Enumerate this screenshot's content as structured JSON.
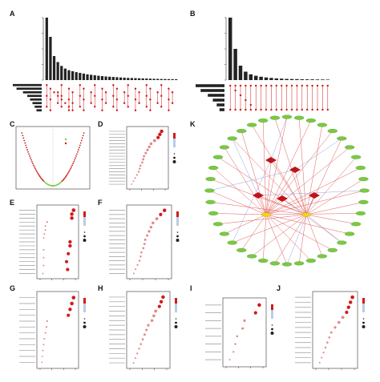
{
  "panels": [
    {
      "id": "A",
      "label": "A"
    },
    {
      "id": "B",
      "label": "B"
    },
    {
      "id": "C",
      "label": "C"
    },
    {
      "id": "D",
      "label": "D"
    },
    {
      "id": "E",
      "label": "E"
    },
    {
      "id": "F",
      "label": "F"
    },
    {
      "id": "G",
      "label": "G"
    },
    {
      "id": "H",
      "label": "H"
    },
    {
      "id": "I",
      "label": "I"
    },
    {
      "id": "J",
      "label": "J"
    },
    {
      "id": "K",
      "label": "K"
    }
  ],
  "upset_A": {
    "intersection_sizes": [
      520,
      360,
      200,
      150,
      118,
      96,
      82,
      74,
      66,
      60,
      54,
      48,
      44,
      40,
      36,
      33,
      30,
      28,
      26,
      24,
      22,
      20,
      18,
      17,
      16,
      15,
      14,
      13,
      12,
      11,
      10,
      9,
      9,
      8,
      8,
      7
    ],
    "set_sizes": [
      940,
      820,
      610,
      470,
      380,
      300,
      230,
      170
    ],
    "colors": {
      "bar": "#222222",
      "dot": "#d11b1b"
    }
  },
  "upset_B": {
    "intersection_sizes": [
      520,
      260,
      120,
      70,
      48,
      36,
      28,
      22,
      18,
      14,
      12,
      10,
      9,
      8,
      7,
      6,
      6,
      5,
      5,
      4
    ],
    "set_sizes": [
      520,
      430,
      300,
      210,
      140,
      90
    ],
    "colors": {
      "bar": "#222222",
      "dot": "#d11b1b"
    }
  },
  "chart_data": [
    {
      "type": "scatter",
      "panel": "C",
      "shape": "volcano",
      "colors": {
        "significant": "#d11b1b",
        "not_significant": "#7ac943"
      }
    },
    {
      "type": "scatter",
      "panel": "D",
      "shape": "dot-plot",
      "points": [
        [
          0.9,
          0
        ],
        [
          0.85,
          1
        ],
        [
          0.8,
          2
        ],
        [
          0.7,
          3
        ],
        [
          0.6,
          4
        ],
        [
          0.55,
          5
        ],
        [
          0.5,
          6
        ],
        [
          0.45,
          7
        ],
        [
          0.4,
          8
        ],
        [
          0.38,
          9
        ],
        [
          0.35,
          10
        ],
        [
          0.3,
          11
        ],
        [
          0.28,
          12
        ],
        [
          0.25,
          13
        ],
        [
          0.2,
          14
        ],
        [
          0.15,
          15
        ],
        [
          0.1,
          16
        ],
        [
          0.05,
          17
        ]
      ]
    },
    {
      "type": "scatter",
      "panel": "E",
      "shape": "dot-plot",
      "points": [
        [
          0.95,
          0
        ],
        [
          0.9,
          1
        ],
        [
          0.9,
          2
        ],
        [
          0.2,
          3
        ],
        [
          0.15,
          4
        ],
        [
          0.15,
          5
        ],
        [
          0.12,
          6
        ],
        [
          0.1,
          7
        ],
        [
          0.85,
          8
        ],
        [
          0.85,
          9
        ],
        [
          0.1,
          10
        ],
        [
          0.8,
          11
        ],
        [
          0.1,
          12
        ],
        [
          0.75,
          13
        ],
        [
          0.1,
          14
        ],
        [
          0.78,
          15
        ],
        [
          0.08,
          16
        ]
      ]
    },
    {
      "type": "scatter",
      "panel": "F",
      "shape": "dot-plot",
      "points": [
        [
          0.9,
          0
        ],
        [
          0.8,
          1
        ],
        [
          0.7,
          2
        ],
        [
          0.6,
          3
        ],
        [
          0.55,
          4
        ],
        [
          0.5,
          5
        ],
        [
          0.45,
          6
        ],
        [
          0.4,
          7
        ],
        [
          0.38,
          8
        ],
        [
          0.35,
          9
        ],
        [
          0.3,
          10
        ],
        [
          0.28,
          11
        ],
        [
          0.25,
          12
        ],
        [
          0.2,
          13
        ],
        [
          0.15,
          14
        ],
        [
          0.1,
          15
        ]
      ]
    },
    {
      "type": "scatter",
      "panel": "G",
      "shape": "dot-plot",
      "points": [
        [
          0.95,
          0
        ],
        [
          0.9,
          1
        ],
        [
          0.85,
          2
        ],
        [
          0.8,
          3
        ],
        [
          0.2,
          4
        ],
        [
          0.18,
          5
        ],
        [
          0.15,
          6
        ],
        [
          0.12,
          7
        ],
        [
          0.1,
          8
        ],
        [
          0.08,
          9
        ],
        [
          0.06,
          10
        ],
        [
          0.05,
          11
        ]
      ]
    },
    {
      "type": "scatter",
      "panel": "H",
      "shape": "dot-plot",
      "points": [
        [
          0.9,
          0
        ],
        [
          0.85,
          1
        ],
        [
          0.8,
          2
        ],
        [
          0.7,
          3
        ],
        [
          0.65,
          4
        ],
        [
          0.6,
          5
        ],
        [
          0.5,
          6
        ],
        [
          0.45,
          7
        ],
        [
          0.4,
          8
        ],
        [
          0.35,
          9
        ],
        [
          0.3,
          10
        ],
        [
          0.25,
          11
        ],
        [
          0.2,
          12
        ],
        [
          0.15,
          13
        ],
        [
          0.1,
          14
        ]
      ]
    },
    {
      "type": "scatter",
      "panel": "I",
      "shape": "dot-plot",
      "points": [
        [
          0.9,
          0
        ],
        [
          0.8,
          1
        ],
        [
          0.5,
          2
        ],
        [
          0.45,
          3
        ],
        [
          0.3,
          4
        ],
        [
          0.25,
          5
        ],
        [
          0.2,
          6
        ],
        [
          0.1,
          7
        ]
      ]
    },
    {
      "type": "scatter",
      "panel": "J",
      "shape": "dot-plot",
      "points": [
        [
          0.95,
          0
        ],
        [
          0.9,
          1
        ],
        [
          0.85,
          2
        ],
        [
          0.8,
          3
        ],
        [
          0.7,
          4
        ],
        [
          0.6,
          5
        ],
        [
          0.5,
          6
        ],
        [
          0.4,
          7
        ],
        [
          0.35,
          8
        ],
        [
          0.3,
          9
        ],
        [
          0.25,
          10
        ],
        [
          0.2,
          11
        ],
        [
          0.15,
          12
        ],
        [
          0.1,
          13
        ]
      ]
    }
  ],
  "network_K": {
    "outer_nodes": 40,
    "hub_nodes": 5,
    "colors": {
      "outer": "#7ac943",
      "hub": "#c0141a",
      "center": "#f2d21b",
      "edge": "#e05a5a",
      "edge_alt": "#7a8fd9"
    }
  },
  "colors": {
    "axis": "#333333",
    "gradient_low": "#d11b1b",
    "gradient_high": "#b8cde6"
  }
}
